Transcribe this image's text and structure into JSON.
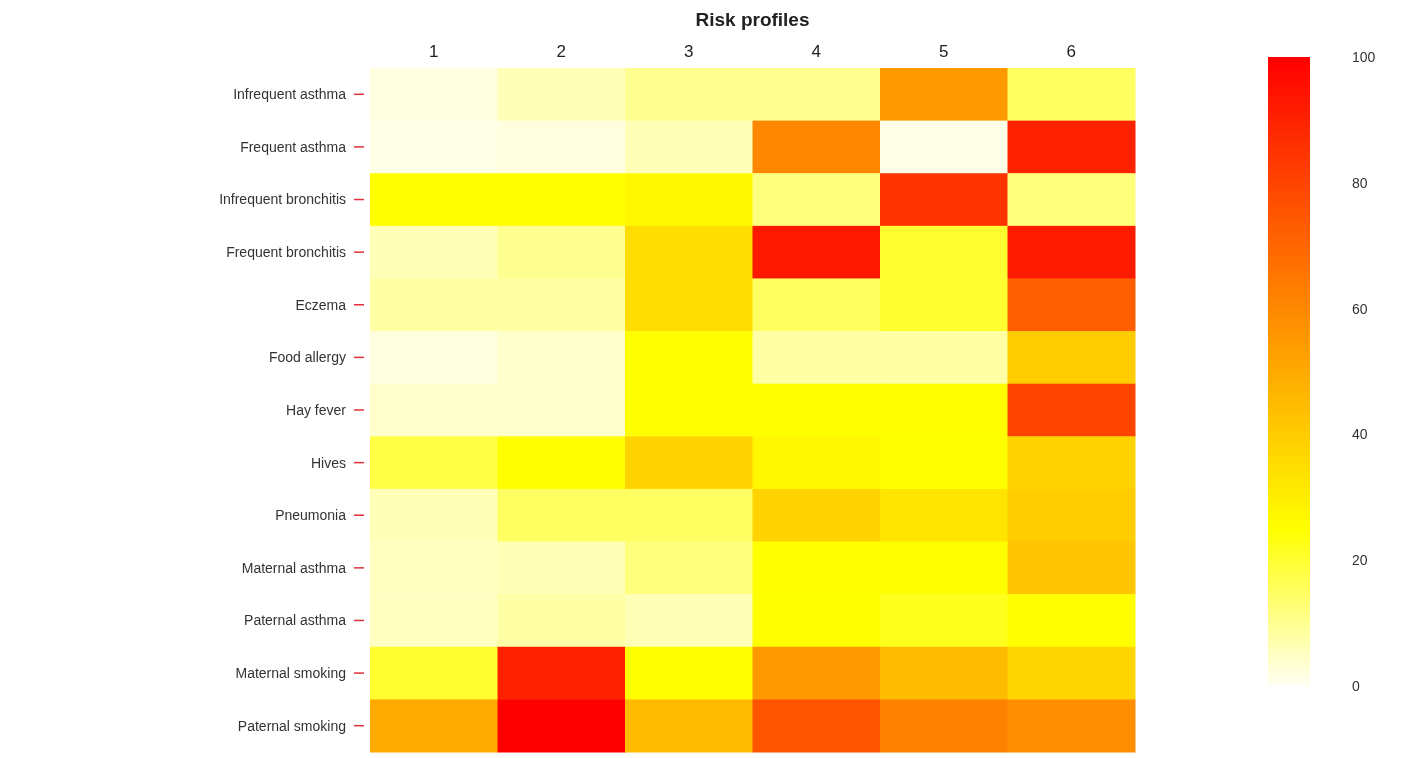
{
  "chart_data": {
    "type": "heatmap",
    "title": "Risk profiles",
    "categories": [
      "1",
      "2",
      "3",
      "4",
      "5",
      "6"
    ],
    "y_categories": [
      "Infrequent asthma",
      "Frequent asthma",
      "Infrequent bronchitis",
      "Frequent bronchitis",
      "Eczema",
      "Food allergy",
      "Hay fever",
      "Hives",
      "Pneumonia",
      "Maternal asthma",
      "Paternal asthma",
      "Maternal smoking",
      "Paternal smoking"
    ],
    "cells": [
      [
        2,
        6,
        10,
        10,
        55,
        15
      ],
      [
        1,
        2,
        6,
        60,
        1,
        90
      ],
      [
        25,
        25,
        27,
        12,
        85,
        12
      ],
      [
        6,
        10,
        35,
        93,
        20,
        92
      ],
      [
        8,
        8,
        35,
        15,
        20,
        72
      ],
      [
        2,
        4,
        25,
        8,
        8,
        40
      ],
      [
        4,
        4,
        25,
        25,
        25,
        80
      ],
      [
        18,
        25,
        38,
        27,
        25,
        38
      ],
      [
        6,
        15,
        15,
        38,
        33,
        40
      ],
      [
        5,
        6,
        12,
        25,
        25,
        42
      ],
      [
        5,
        8,
        6,
        25,
        22,
        25
      ],
      [
        20,
        90,
        25,
        55,
        45,
        37
      ],
      [
        50,
        100,
        45,
        75,
        62,
        58
      ]
    ],
    "clim": [
      0,
      100
    ],
    "cticks": [
      0,
      20,
      40,
      60,
      80,
      100
    ]
  }
}
